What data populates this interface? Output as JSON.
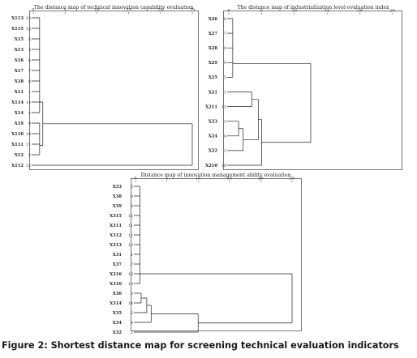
{
  "caption": "Figure 2: Shortest distance map for screening technical evaluation indicators",
  "colors": {
    "frame": "#777777",
    "line": "#222222",
    "text": "#222222",
    "bg": "#ffffff"
  },
  "chart_data": [
    {
      "type": "dendrogram",
      "title": "The distance map of technical innovation capability evaluation",
      "xlim": [
        0,
        25
      ],
      "xticks": [
        0,
        5,
        10,
        15,
        20,
        25
      ],
      "rows": [
        {
          "label": "X113",
          "num": "13"
        },
        {
          "label": "X115",
          "num": "15"
        },
        {
          "label": "X15",
          "num": "5"
        },
        {
          "label": "X13",
          "num": "3"
        },
        {
          "label": "X16",
          "num": "6"
        },
        {
          "label": "X17",
          "num": "7"
        },
        {
          "label": "X18",
          "num": "8"
        },
        {
          "label": "X11",
          "num": "1"
        },
        {
          "label": "X114",
          "num": "14"
        },
        {
          "label": "X14",
          "num": "4"
        },
        {
          "label": "X19",
          "num": "9"
        },
        {
          "label": "X110",
          "num": "10"
        },
        {
          "label": "X111",
          "num": "11"
        },
        {
          "label": "X12",
          "num": "2"
        },
        {
          "label": "X112",
          "num": "12"
        }
      ],
      "merges": [
        {
          "a": 0,
          "b": 1,
          "h": 1
        },
        {
          "a": 15,
          "b": 2,
          "h": 1
        },
        {
          "a": 16,
          "b": 3,
          "h": 1
        },
        {
          "a": 17,
          "b": 4,
          "h": 1
        },
        {
          "a": 18,
          "b": 5,
          "h": 1
        },
        {
          "a": 19,
          "b": 6,
          "h": 1
        },
        {
          "a": 20,
          "b": 7,
          "h": 1
        },
        {
          "a": 21,
          "b": 8,
          "h": 1
        },
        {
          "a": 22,
          "b": 9,
          "h": 1
        },
        {
          "a": 10,
          "b": 11,
          "h": 1
        },
        {
          "a": 24,
          "b": 12,
          "h": 1
        },
        {
          "a": 25,
          "b": 13,
          "h": 1
        },
        {
          "a": 23,
          "b": 26,
          "h": 1.5
        },
        {
          "a": 27,
          "b": 14,
          "h": 25
        }
      ]
    },
    {
      "type": "dendrogram",
      "title": "The distance map of industrialization level evaluation index",
      "xlim": [
        0,
        25
      ],
      "xticks": [
        0,
        5,
        10,
        15,
        20,
        25
      ],
      "rows": [
        {
          "label": "X26",
          "num": "6"
        },
        {
          "label": "X27",
          "num": "7"
        },
        {
          "label": "X28",
          "num": "8"
        },
        {
          "label": "X29",
          "num": "9"
        },
        {
          "label": "X25",
          "num": "5"
        },
        {
          "label": "X21",
          "num": "1"
        },
        {
          "label": "X211",
          "num": "11"
        },
        {
          "label": "X23",
          "num": "3"
        },
        {
          "label": "X24",
          "num": "4"
        },
        {
          "label": "X22",
          "num": "2"
        },
        {
          "label": "X210",
          "num": "10"
        }
      ],
      "merges": [
        {
          "a": 0,
          "b": 1,
          "h": 0.6
        },
        {
          "a": 11,
          "b": 2,
          "h": 0.6
        },
        {
          "a": 12,
          "b": 3,
          "h": 0.6
        },
        {
          "a": 13,
          "b": 4,
          "h": 0.6
        },
        {
          "a": 7,
          "b": 8,
          "h": 1.5
        },
        {
          "a": 15,
          "b": 9,
          "h": 2.2
        },
        {
          "a": 5,
          "b": 6,
          "h": 3.5
        },
        {
          "a": 17,
          "b": 16,
          "h": 4.5
        },
        {
          "a": 18,
          "b": 10,
          "h": 5
        },
        {
          "a": 14,
          "b": 19,
          "h": 12.5
        },
        {
          "a": 20,
          "b": 20,
          "h": 25
        }
      ],
      "top_merge_h": 25
    },
    {
      "type": "dendrogram",
      "title": "Distance map of innovation management ability evaluation",
      "xlim": [
        0,
        25
      ],
      "xticks": [
        0,
        5,
        10,
        15,
        20,
        25
      ],
      "rows": [
        {
          "label": "X33",
          "num": "3"
        },
        {
          "label": "X38",
          "num": "8"
        },
        {
          "label": "X39",
          "num": "9"
        },
        {
          "label": "X315",
          "num": "15"
        },
        {
          "label": "X311",
          "num": "11"
        },
        {
          "label": "X312",
          "num": "12"
        },
        {
          "label": "X313",
          "num": "13"
        },
        {
          "label": "X31",
          "num": "1"
        },
        {
          "label": "X37",
          "num": "7"
        },
        {
          "label": "X316",
          "num": "16"
        },
        {
          "label": "X310",
          "num": "10"
        },
        {
          "label": "X36",
          "num": "6"
        },
        {
          "label": "X314",
          "num": "14"
        },
        {
          "label": "X35",
          "num": "5"
        },
        {
          "label": "X34",
          "num": "4"
        },
        {
          "label": "X32",
          "num": "2"
        }
      ],
      "merges": [
        {
          "a": 0,
          "b": 1,
          "h": 0.7
        },
        {
          "a": 16,
          "b": 2,
          "h": 0.7
        },
        {
          "a": 17,
          "b": 3,
          "h": 0.7
        },
        {
          "a": 18,
          "b": 4,
          "h": 0.7
        },
        {
          "a": 19,
          "b": 5,
          "h": 0.7
        },
        {
          "a": 20,
          "b": 6,
          "h": 0.7
        },
        {
          "a": 21,
          "b": 7,
          "h": 0.7
        },
        {
          "a": 22,
          "b": 8,
          "h": 0.7
        },
        {
          "a": 23,
          "b": 9,
          "h": 0.7
        },
        {
          "a": 24,
          "b": 10,
          "h": 0.7
        },
        {
          "a": 11,
          "b": 12,
          "h": 0.9
        },
        {
          "a": 26,
          "b": 13,
          "h": 1.8
        },
        {
          "a": 27,
          "b": 14,
          "h": 2.5
        },
        {
          "a": 28,
          "b": 15,
          "h": 10
        },
        {
          "a": 25,
          "b": 29,
          "h": 25
        }
      ]
    }
  ]
}
